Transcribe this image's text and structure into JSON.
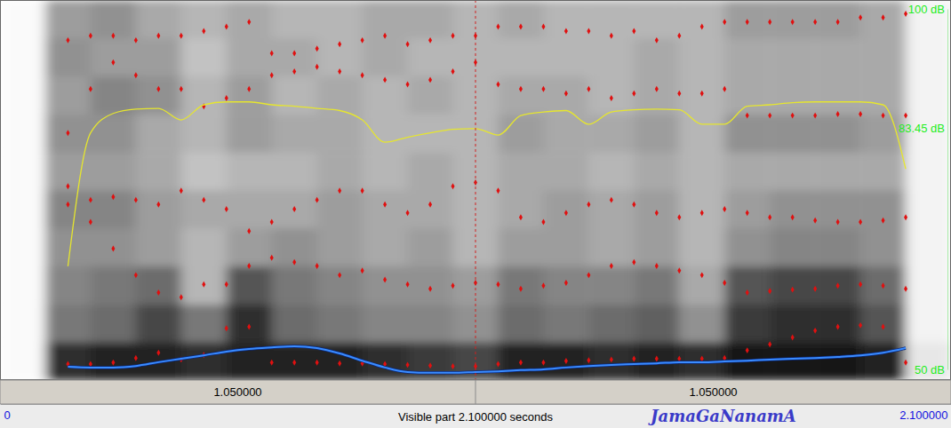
{
  "chart_data": {
    "type": "spectrogram",
    "title": "JamaGaNanamA",
    "subtitle": "Visible part 2.100000 seconds",
    "xlim": [
      0,
      2.1
    ],
    "xticks": [
      0,
      {
        "value": 2.1,
        "label": "2.100000"
      }
    ],
    "ylim": [
      0,
      5000
    ],
    "y2lim": [
      50,
      100
    ],
    "y2ticks": [
      {
        "value": 100,
        "label": "100 dB"
      },
      {
        "value": 83.45,
        "label": "83.45 dB"
      },
      {
        "value": 50,
        "label": "50 dB"
      }
    ],
    "cursor": 1.05,
    "annotations": [
      {
        "text": "1.050000",
        "x": 0.525
      },
      {
        "text": "1.050000",
        "x": 1.575
      }
    ],
    "spectrogram": {
      "time_bins": [
        0,
        0.1,
        0.2,
        0.3,
        0.4,
        0.5,
        0.6,
        0.7,
        0.8,
        0.9,
        1.0,
        1.1,
        1.2,
        1.3,
        1.4,
        1.5,
        1.6,
        1.7,
        1.8,
        1.9,
        2.0,
        2.1
      ],
      "freq_bins": [
        0,
        500,
        1000,
        1500,
        2000,
        2500,
        3000,
        3500,
        4000,
        4500,
        5000
      ],
      "levels": [
        [
          0.02,
          0.02,
          0.02,
          0.02,
          0.02,
          0.02,
          0.02,
          0.02,
          0.02,
          0.02
        ],
        [
          0.85,
          0.55,
          0.5,
          0.45,
          0.5,
          0.4,
          0.45,
          0.4,
          0.45,
          0.4
        ],
        [
          0.9,
          0.6,
          0.55,
          0.45,
          0.5,
          0.4,
          0.45,
          0.5,
          0.4,
          0.45
        ],
        [
          0.9,
          0.75,
          0.6,
          0.4,
          0.4,
          0.35,
          0.35,
          0.45,
          0.4,
          0.35
        ],
        [
          0.85,
          0.55,
          0.3,
          0.3,
          0.35,
          0.25,
          0.3,
          0.3,
          0.25,
          0.3
        ],
        [
          0.9,
          0.85,
          0.7,
          0.4,
          0.35,
          0.3,
          0.4,
          0.4,
          0.35,
          0.35
        ],
        [
          0.9,
          0.6,
          0.55,
          0.45,
          0.35,
          0.3,
          0.35,
          0.3,
          0.35,
          0.3
        ],
        [
          0.9,
          0.55,
          0.5,
          0.4,
          0.4,
          0.35,
          0.35,
          0.35,
          0.3,
          0.3
        ],
        [
          0.85,
          0.5,
          0.45,
          0.35,
          0.35,
          0.3,
          0.3,
          0.3,
          0.35,
          0.35
        ],
        [
          0.8,
          0.5,
          0.45,
          0.4,
          0.35,
          0.35,
          0.3,
          0.35,
          0.3,
          0.35
        ],
        [
          0.75,
          0.45,
          0.4,
          0.3,
          0.3,
          0.3,
          0.3,
          0.3,
          0.3,
          0.3
        ],
        [
          0.9,
          0.6,
          0.55,
          0.4,
          0.35,
          0.35,
          0.4,
          0.35,
          0.3,
          0.35
        ],
        [
          0.9,
          0.55,
          0.5,
          0.4,
          0.4,
          0.35,
          0.35,
          0.35,
          0.3,
          0.3
        ],
        [
          0.85,
          0.6,
          0.5,
          0.35,
          0.35,
          0.3,
          0.35,
          0.3,
          0.3,
          0.3
        ],
        [
          0.9,
          0.65,
          0.55,
          0.4,
          0.4,
          0.35,
          0.4,
          0.35,
          0.35,
          0.3
        ],
        [
          0.85,
          0.45,
          0.35,
          0.3,
          0.3,
          0.3,
          0.3,
          0.3,
          0.3,
          0.3
        ],
        [
          0.95,
          0.8,
          0.7,
          0.45,
          0.4,
          0.35,
          0.45,
          0.35,
          0.35,
          0.4
        ],
        [
          0.95,
          0.85,
          0.75,
          0.5,
          0.45,
          0.35,
          0.45,
          0.35,
          0.35,
          0.4
        ],
        [
          0.95,
          0.85,
          0.75,
          0.5,
          0.45,
          0.35,
          0.45,
          0.35,
          0.35,
          0.4
        ],
        [
          0.9,
          0.7,
          0.6,
          0.45,
          0.45,
          0.35,
          0.4,
          0.35,
          0.35,
          0.35
        ],
        [
          0.1,
          0.05,
          0.05,
          0.05,
          0.05,
          0.05,
          0.05,
          0.05,
          0.05,
          0.05
        ]
      ]
    },
    "x": [
      0.15,
      0.2,
      0.25,
      0.3,
      0.35,
      0.4,
      0.45,
      0.5,
      0.55,
      0.6,
      0.65,
      0.7,
      0.75,
      0.8,
      0.85,
      0.9,
      0.95,
      1.0,
      1.05,
      1.1,
      1.15,
      1.2,
      1.25,
      1.3,
      1.35,
      1.4,
      1.45,
      1.5,
      1.55,
      1.6,
      1.65,
      1.7,
      1.75,
      1.8,
      1.85,
      1.9,
      1.95,
      2.0
    ],
    "series": [
      {
        "type": "scatter",
        "marker": "diamond",
        "color": "#e01010",
        "values": [
          210,
          210,
          230,
          290,
          360,
          270,
          330,
          680,
          700,
          230,
          230,
          230,
          220,
          220,
          210,
          200,
          190,
          180,
          180,
          210,
          230,
          230,
          250,
          260,
          270,
          280,
          280,
          280,
          280,
          290,
          390,
          470,
          560,
          650,
          700,
          720,
          700,
          230
        ]
      },
      {
        "type": "scatter",
        "marker": "diamond",
        "color": "#e01010",
        "values": [
          2310,
          2080,
          1730,
          1380,
          1150,
          1090,
          1260,
          1260,
          1500,
          1610,
          1550,
          1500,
          1380,
          1440,
          1320,
          1260,
          1200,
          1240,
          1280,
          1260,
          1200,
          1240,
          1280,
          1380,
          1500,
          1550,
          1500,
          1440,
          1380,
          1280,
          1150,
          1170,
          1190,
          1200,
          1240,
          1260,
          1240,
          1200
        ]
      },
      {
        "type": "scatter",
        "marker": "diamond",
        "color": "#e01010",
        "values": [
          2550,
          2370,
          2410,
          2370,
          2310,
          2490,
          2370,
          2250,
          1960,
          2080,
          2250,
          2370,
          2490,
          2490,
          2310,
          2200,
          2310,
          2550,
          2600,
          2490,
          2140,
          2080,
          2200,
          2310,
          2370,
          2310,
          2200,
          2140,
          2200,
          2250,
          2200,
          2140,
          2140,
          2100,
          2080,
          2080,
          2100,
          2140
        ]
      },
      {
        "type": "scatter",
        "marker": "diamond",
        "color": "#e01010",
        "values": [
          3250,
          3830,
          4180,
          4010,
          3830,
          3830,
          3600,
          3710,
          3830,
          4010,
          4060,
          4120,
          4060,
          4010,
          3950,
          3890,
          3950,
          4060,
          4180,
          3890,
          3830,
          3830,
          3770,
          3830,
          3710,
          3770,
          3830,
          3770,
          3770,
          3830,
          3480,
          3480,
          3480,
          3480,
          3500,
          3500,
          3480,
          3480
        ]
      },
      {
        "type": "scatter",
        "marker": "diamond",
        "color": "#e01010",
        "values": [
          4470,
          4530,
          4530,
          4470,
          4530,
          4530,
          4590,
          4650,
          4710,
          4300,
          4300,
          4360,
          4420,
          4470,
          4530,
          4420,
          4470,
          4530,
          4530,
          4650,
          4650,
          4650,
          4590,
          4590,
          4530,
          4590,
          4470,
          4530,
          4650,
          4710,
          4710,
          4710,
          4710,
          4710,
          4710,
          4770,
          4770,
          4820
        ]
      },
      {
        "type": "line",
        "line_style": "solid",
        "color": "#3a8cff",
        "values": [
          175,
          165,
          165,
          185,
          235,
          280,
          325,
          375,
          410,
          430,
          445,
          420,
          350,
          255,
          165,
          105,
          95,
          95,
          105,
          115,
          130,
          140,
          165,
          185,
          200,
          210,
          220,
          235,
          235,
          245,
          255,
          270,
          280,
          290,
          305,
          325,
          360,
          420
        ]
      },
      {
        "type": "line",
        "line_style": "solid",
        "color": "#e6e62e",
        "axis": "y2",
        "values": [
          64.3,
          82.8,
          85.5,
          86.1,
          86.2,
          84.6,
          86.7,
          87.1,
          87.1,
          86.7,
          86.5,
          86.2,
          85.9,
          84.6,
          81.5,
          82.2,
          82.8,
          83.3,
          83.4,
          82.5,
          85.2,
          85.7,
          85.9,
          84.0,
          85.7,
          86.0,
          86.1,
          86.0,
          84.0,
          84.0,
          86.5,
          86.7,
          87.0,
          87.1,
          87.1,
          87.1,
          86.7,
          77.8
        ]
      }
    ]
  }
}
